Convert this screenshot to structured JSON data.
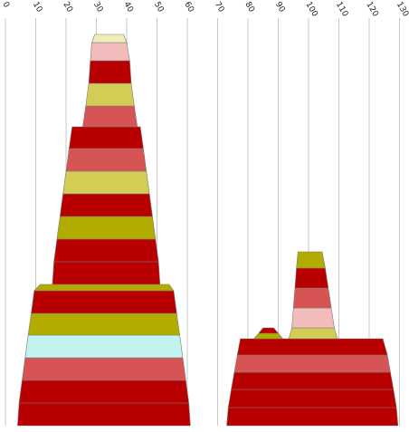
{
  "chart_data": {
    "type": "area",
    "x_axis": {
      "ticks": [
        0,
        10,
        20,
        30,
        40,
        50,
        60,
        70,
        80,
        90,
        100,
        110,
        120,
        130
      ],
      "range": [
        0,
        130
      ],
      "label_orientation": "rotated",
      "grid": true
    },
    "colors": {
      "dark_red": "#b90000",
      "salmon": "#d65454",
      "pink": "#f2bcbc",
      "olive": "#b3ac00",
      "yellow_green": "#d3cd55",
      "pale_yellow": "#efeeb8",
      "pale_cyan": "#c2f3ee"
    },
    "stacks": [
      {
        "name": "left-stack",
        "bands": [
          {
            "left": 4.0,
            "right": 61.0,
            "left_top": 4.5,
            "right_top": 60.5,
            "color": "dark_red"
          },
          {
            "left": 4.5,
            "right": 60.5,
            "left_top": 5.5,
            "right_top": 59.5,
            "color": "dark_red"
          },
          {
            "left": 5.5,
            "right": 59.5,
            "left_top": 6.5,
            "right_top": 58.5,
            "color": "salmon"
          },
          {
            "left": 6.5,
            "right": 58.5,
            "left_top": 7.5,
            "right_top": 57.5,
            "color": "pale_cyan"
          },
          {
            "left": 7.5,
            "right": 57.5,
            "left_top": 8.5,
            "right_top": 56.5,
            "color": "olive"
          },
          {
            "left": 8.5,
            "right": 56.5,
            "left_top": 9.5,
            "right_top": 55.5,
            "color": "dark_red"
          },
          {
            "left": 9.5,
            "right": 55.5,
            "left_top": 11.5,
            "right_top": 54.0,
            "color": "olive"
          },
          {
            "left": 15.5,
            "right": 51.0,
            "left_top": 16.0,
            "right_top": 50.5,
            "color": "dark_red"
          },
          {
            "left": 16.0,
            "right": 50.5,
            "left_top": 17.0,
            "right_top": 49.5,
            "color": "dark_red"
          },
          {
            "left": 17.0,
            "right": 49.5,
            "left_top": 18.0,
            "right_top": 48.5,
            "color": "olive"
          },
          {
            "left": 18.0,
            "right": 48.5,
            "left_top": 19.0,
            "right_top": 47.5,
            "color": "dark_red"
          },
          {
            "left": 19.0,
            "right": 47.5,
            "left_top": 20.0,
            "right_top": 46.5,
            "color": "yellow_green"
          },
          {
            "left": 20.0,
            "right": 46.5,
            "left_top": 21.0,
            "right_top": 45.5,
            "color": "salmon"
          },
          {
            "left": 21.0,
            "right": 45.5,
            "left_top": 22.0,
            "right_top": 44.5,
            "color": "dark_red"
          },
          {
            "left": 25.5,
            "right": 43.5,
            "left_top": 26.5,
            "right_top": 42.5,
            "color": "salmon"
          },
          {
            "left": 26.5,
            "right": 42.5,
            "left_top": 27.5,
            "right_top": 41.5,
            "color": "yellow_green"
          },
          {
            "left": 27.5,
            "right": 41.5,
            "left_top": 28.0,
            "right_top": 41.0,
            "color": "dark_red"
          },
          {
            "left": 28.0,
            "right": 41.0,
            "left_top": 28.5,
            "right_top": 40.0,
            "color": "pink"
          },
          {
            "left": 28.5,
            "right": 40.0,
            "left_top": 29.5,
            "right_top": 39.0,
            "color": "pale_yellow"
          }
        ]
      },
      {
        "name": "right-stack",
        "bands": [
          {
            "left": 73.0,
            "right": 129.5,
            "left_top": 73.5,
            "right_top": 129.0,
            "color": "dark_red"
          },
          {
            "left": 73.5,
            "right": 129.0,
            "left_top": 74.5,
            "right_top": 128.0,
            "color": "dark_red"
          },
          {
            "left": 74.5,
            "right": 128.0,
            "left_top": 75.5,
            "right_top": 127.0,
            "color": "dark_red"
          },
          {
            "left": 75.5,
            "right": 127.0,
            "left_top": 76.5,
            "right_top": 126.0,
            "color": "salmon"
          },
          {
            "left": 76.5,
            "right": 126.0,
            "left_top": 77.5,
            "right_top": 124.5,
            "color": "dark_red"
          },
          {
            "left": 82.0,
            "right": 91.5,
            "left_top": 83.5,
            "right_top": 90.0,
            "color": "olive"
          },
          {
            "left": 83.5,
            "right": 90.0,
            "left_top": 85.0,
            "right_top": 88.5,
            "color": "dark_red"
          },
          {
            "left": 93.5,
            "right": 109.5,
            "left_top": 94.5,
            "right_top": 108.5,
            "color": "yellow_green"
          },
          {
            "left": 94.5,
            "right": 108.5,
            "left_top": 95.0,
            "right_top": 107.5,
            "color": "pink"
          },
          {
            "left": 95.0,
            "right": 107.5,
            "left_top": 95.5,
            "right_top": 106.5,
            "color": "salmon"
          },
          {
            "left": 95.5,
            "right": 106.5,
            "left_top": 96.0,
            "right_top": 105.5,
            "color": "dark_red"
          },
          {
            "left": 96.0,
            "right": 105.5,
            "left_top": 96.5,
            "right_top": 104.5,
            "color": "olive"
          }
        ]
      }
    ]
  }
}
